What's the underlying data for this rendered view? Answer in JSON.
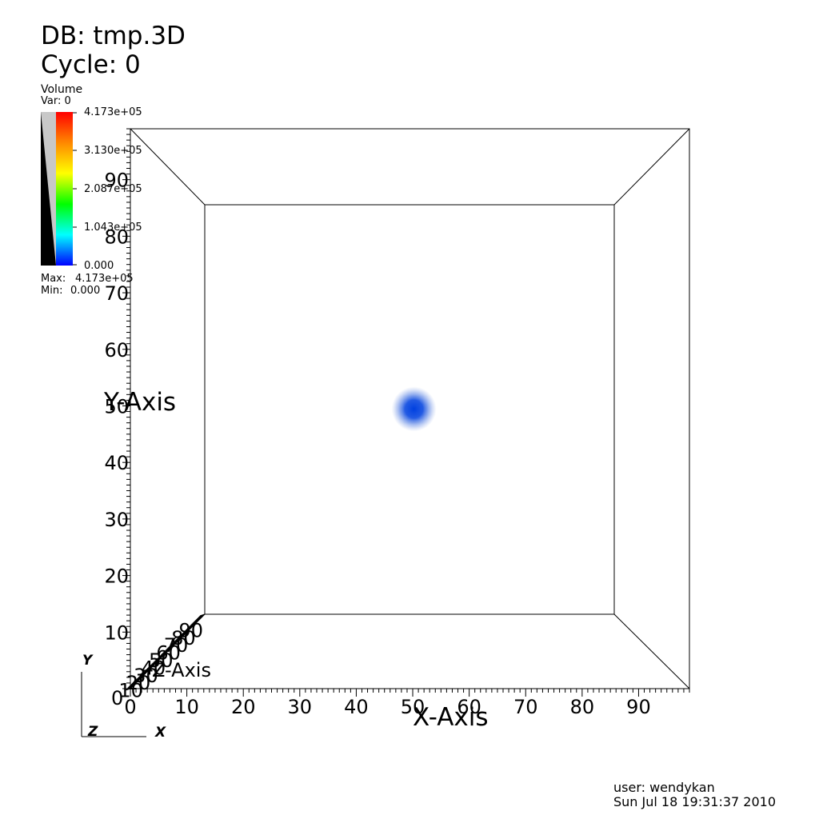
{
  "header": {
    "db_title": "DB: tmp.3D",
    "cycle": "Cycle: 0"
  },
  "legend": {
    "title": "Volume",
    "var": "Var: 0",
    "ticks": [
      "4.173e+05",
      "3.130e+05",
      "2.087e+05",
      "1.043e+05",
      "0.000"
    ],
    "max_label": "Max:",
    "max_value": "4.173e+05",
    "min_label": "Min:",
    "min_value": "0.000",
    "colormap": [
      "#ff0000",
      "#ff8800",
      "#ffff00",
      "#00ff00",
      "#00ffff",
      "#0000ff"
    ]
  },
  "axes": {
    "x_label": "X-Axis",
    "y_label": "Y-Axis",
    "z_label": "Z-Axis",
    "x_ticks": [
      "0",
      "10",
      "20",
      "30",
      "40",
      "50",
      "60",
      "70",
      "80",
      "90"
    ],
    "y_ticks": [
      "10",
      "20",
      "30",
      "40",
      "50",
      "60",
      "70",
      "80",
      "90"
    ],
    "z_ticks": [
      "0",
      "10",
      "20",
      "30",
      "40",
      "50",
      "60",
      "70",
      "80",
      "90"
    ]
  },
  "triad": {
    "x": "X",
    "y": "Y",
    "z": "Z"
  },
  "blob": {
    "color": "#0040e0",
    "x": 50,
    "y": 50
  },
  "footer": {
    "user": "user: wendykan",
    "timestamp": "Sun Jul 18 19:31:37 2010"
  }
}
